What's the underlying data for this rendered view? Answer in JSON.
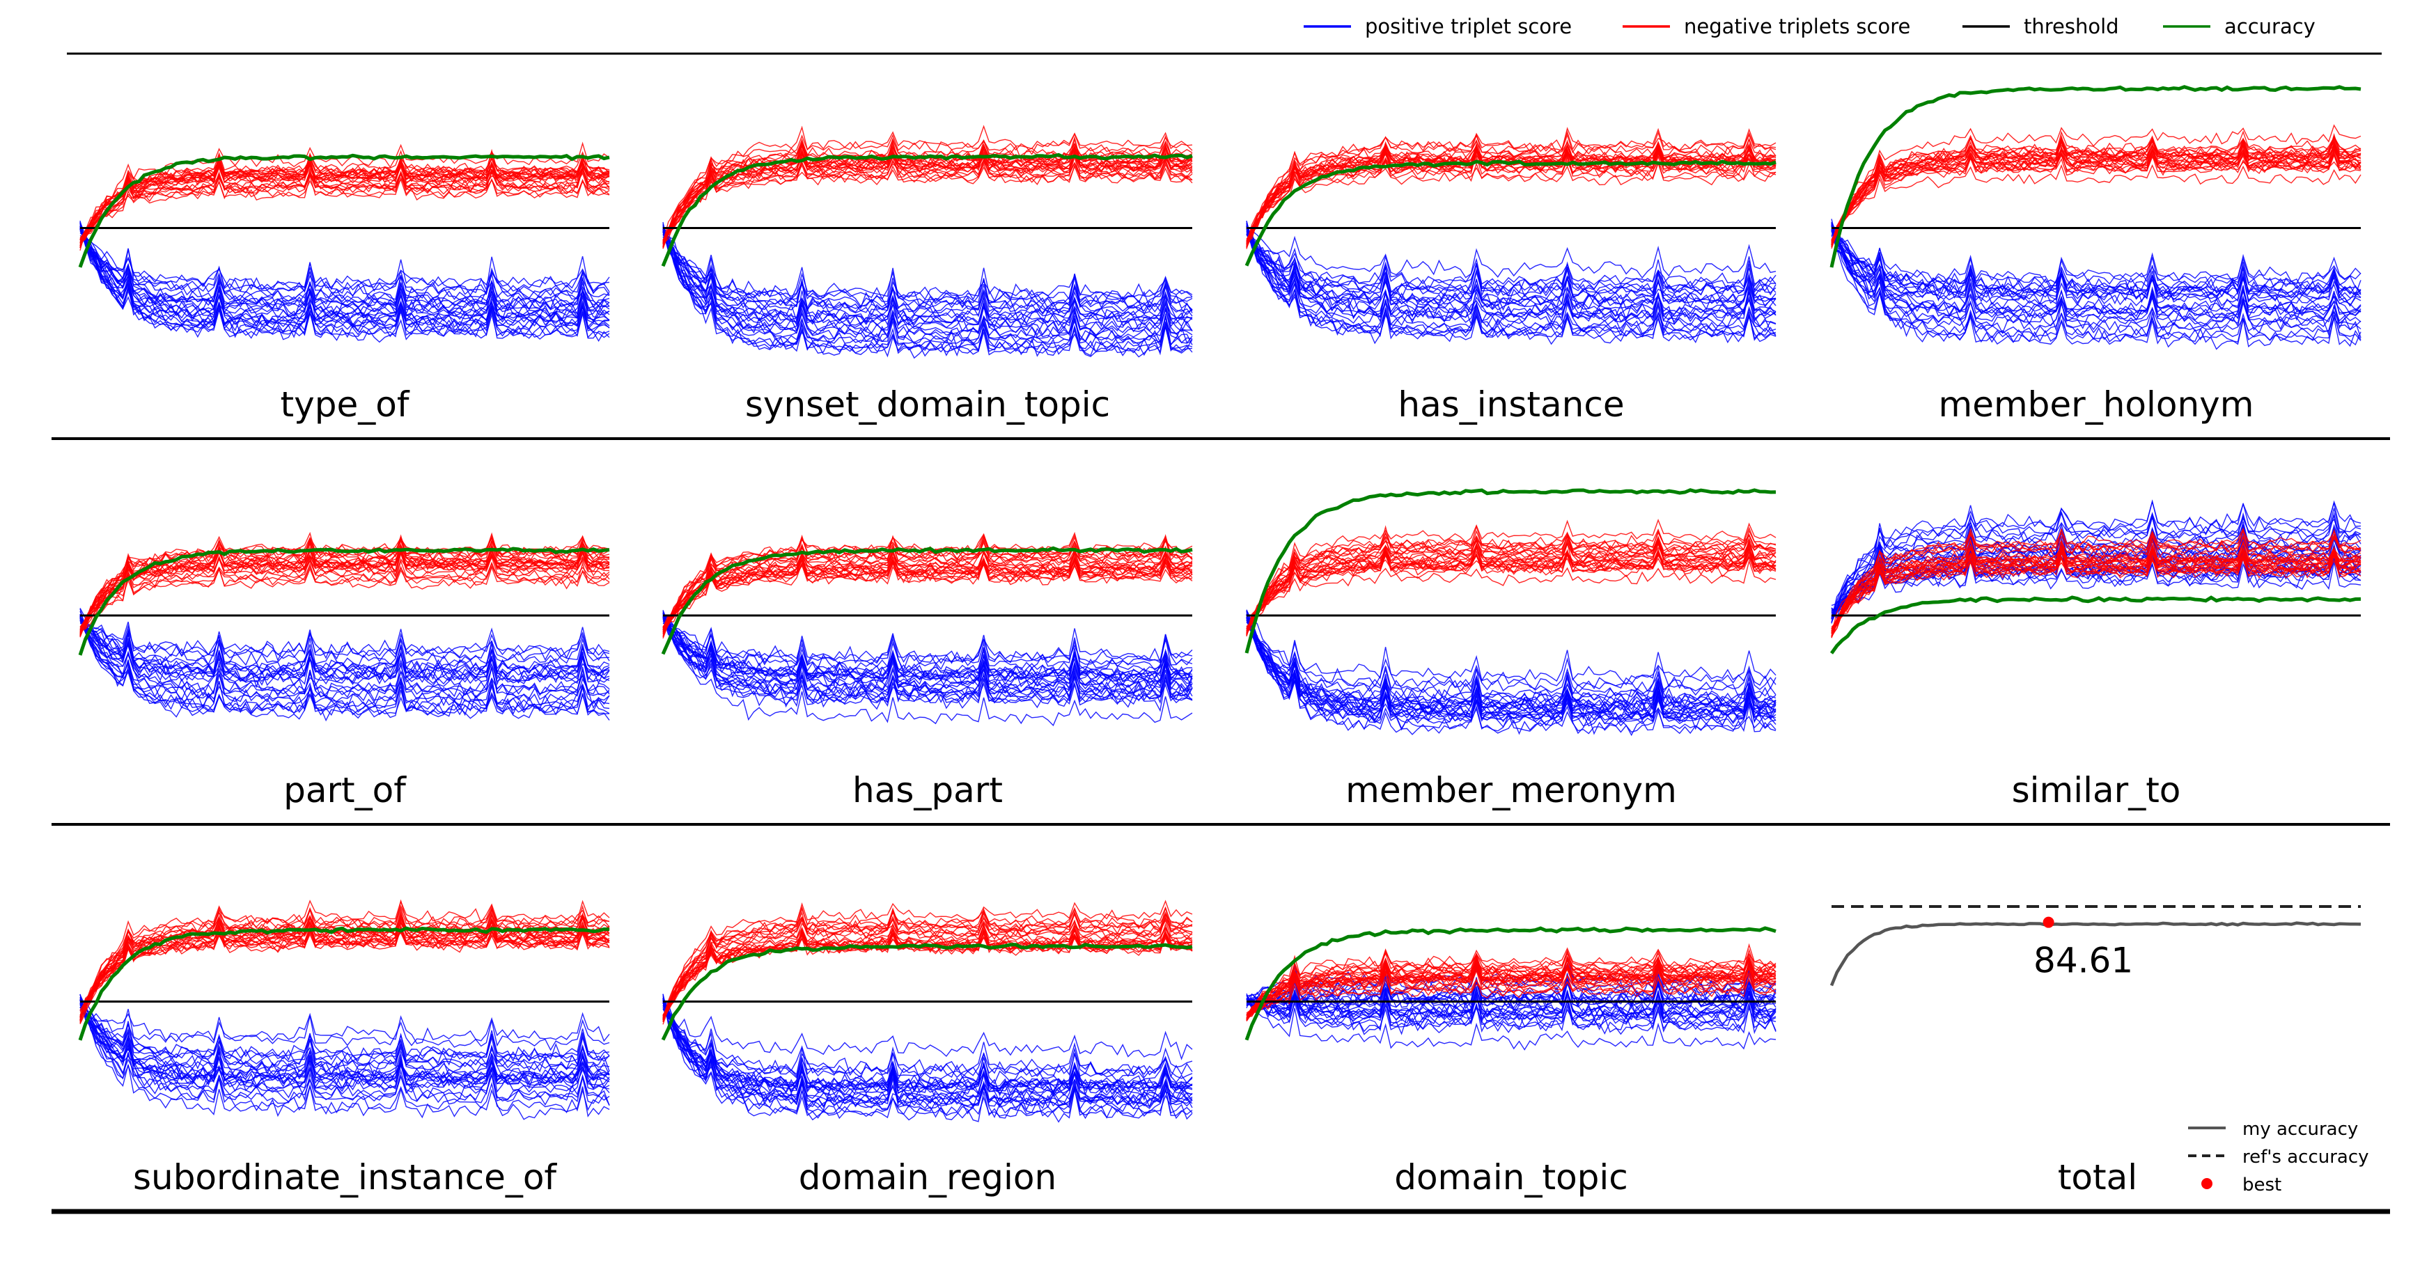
{
  "legend": {
    "items": [
      {
        "label": "positive triplet score",
        "color": "#0000ff"
      },
      {
        "label": "negative triplets score",
        "color": "#ff0000"
      },
      {
        "label": "threshold",
        "color": "#000000"
      },
      {
        "label": "accuracy",
        "color": "#008000"
      }
    ]
  },
  "total_legend": {
    "my_accuracy": "my accuracy",
    "refs_accuracy": "ref's accuracy",
    "best": "best",
    "my_color": "#555555",
    "ref_color": "#222222",
    "best_color": "#ff0000"
  },
  "chart_data": {
    "type": "line",
    "panels": [
      {
        "title": "type_of",
        "threshold": 0.5,
        "accuracy_level": 0.72,
        "pos_center": 0.26,
        "neg_center": 0.66
      },
      {
        "title": "synset_domain_topic",
        "threshold": 0.5,
        "accuracy_level": 0.72,
        "pos_center": 0.22,
        "neg_center": 0.7
      },
      {
        "title": "has_instance",
        "threshold": 0.5,
        "accuracy_level": 0.7,
        "pos_center": 0.27,
        "neg_center": 0.7
      },
      {
        "title": "member_holonym",
        "threshold": 0.5,
        "accuracy_level": 0.93,
        "pos_center": 0.24,
        "neg_center": 0.72
      },
      {
        "title": "part_of",
        "threshold": 0.5,
        "accuracy_level": 0.7,
        "pos_center": 0.3,
        "neg_center": 0.66
      },
      {
        "title": "has_part",
        "threshold": 0.5,
        "accuracy_level": 0.7,
        "pos_center": 0.3,
        "neg_center": 0.66
      },
      {
        "title": "member_meronym",
        "threshold": 0.5,
        "accuracy_level": 0.88,
        "pos_center": 0.23,
        "neg_center": 0.68
      },
      {
        "title": "similar_to",
        "threshold": 0.5,
        "accuracy_level": 0.55,
        "pos_center": 0.68,
        "neg_center": 0.68
      },
      {
        "title": "subordinate_instance_of",
        "threshold": 0.5,
        "accuracy_level": 0.72,
        "pos_center": 0.28,
        "neg_center": 0.7
      },
      {
        "title": "domain_region",
        "threshold": 0.5,
        "accuracy_level": 0.67,
        "pos_center": 0.25,
        "neg_center": 0.71
      },
      {
        "title": "domain_topic",
        "threshold": 0.5,
        "accuracy_level": 0.72,
        "pos_center": 0.48,
        "neg_center": 0.58
      }
    ],
    "total": {
      "title": "total",
      "best_label": "84.61",
      "best_value": 84.61,
      "best_epoch_fraction": 0.41,
      "ref_accuracy": 86.5,
      "start_accuracy": 77.0,
      "plateau_accuracy": 84.4
    },
    "n_points": 100,
    "n_pos_series": 25,
    "n_neg_series": 25,
    "grid": false,
    "legend_placement": "top-right"
  }
}
